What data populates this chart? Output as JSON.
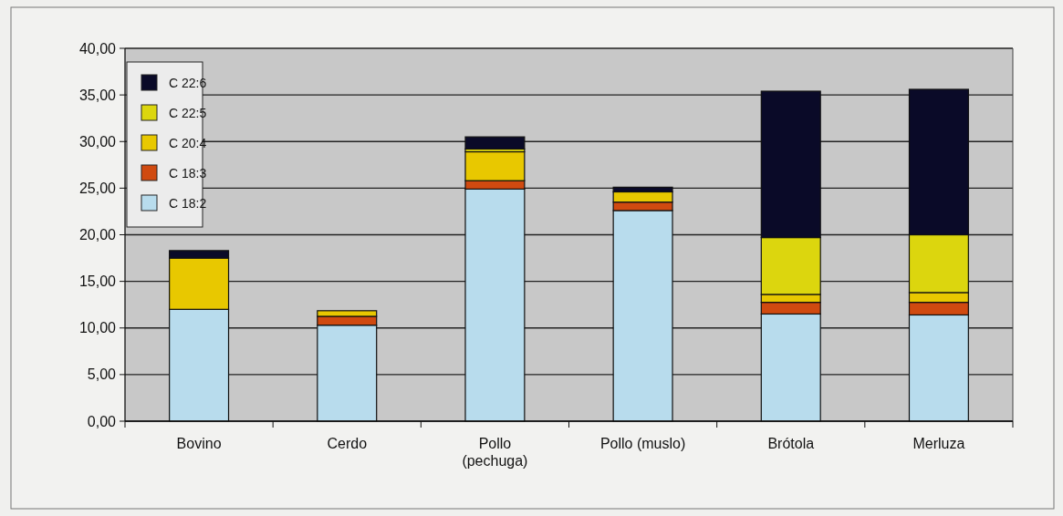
{
  "chart_data": {
    "type": "bar",
    "stacked": true,
    "categories": [
      "Bovino",
      "Cerdo",
      "Pollo\n(pechuga)",
      "Pollo (muslo)",
      "Brótola",
      "Merluza"
    ],
    "series": [
      {
        "name": "C 18:2",
        "color": "#b8dced",
        "values": [
          12.0,
          10.3,
          24.9,
          22.6,
          11.5,
          11.4
        ]
      },
      {
        "name": "C 18:3",
        "color": "#d04a10",
        "values": [
          0,
          0.95,
          0.9,
          0.9,
          1.25,
          1.35
        ]
      },
      {
        "name": "C 20:4",
        "color": "#e8c800",
        "values": [
          5.5,
          0.6,
          3.1,
          1.1,
          0.85,
          1.05
        ]
      },
      {
        "name": "C 22:5",
        "color": "#dcd60e",
        "values": [
          0,
          0,
          0.3,
          0,
          6.1,
          6.2
        ]
      },
      {
        "name": "C 22:6",
        "color": "#0a0a28",
        "values": [
          0.8,
          0,
          1.3,
          0.5,
          15.7,
          15.6
        ]
      }
    ],
    "ylim": [
      0,
      40
    ],
    "yticks": [
      {
        "value": 0,
        "label": "0,00"
      },
      {
        "value": 5,
        "label": "5,00"
      },
      {
        "value": 10,
        "label": "10,00"
      },
      {
        "value": 15,
        "label": "15,00"
      },
      {
        "value": 20,
        "label": "20,00"
      },
      {
        "value": 25,
        "label": "25,00"
      },
      {
        "value": 30,
        "label": "30,00"
      },
      {
        "value": 35,
        "label": "35,00"
      },
      {
        "value": 40,
        "label": "40,00"
      }
    ],
    "grid": "y",
    "legend": "top left"
  }
}
